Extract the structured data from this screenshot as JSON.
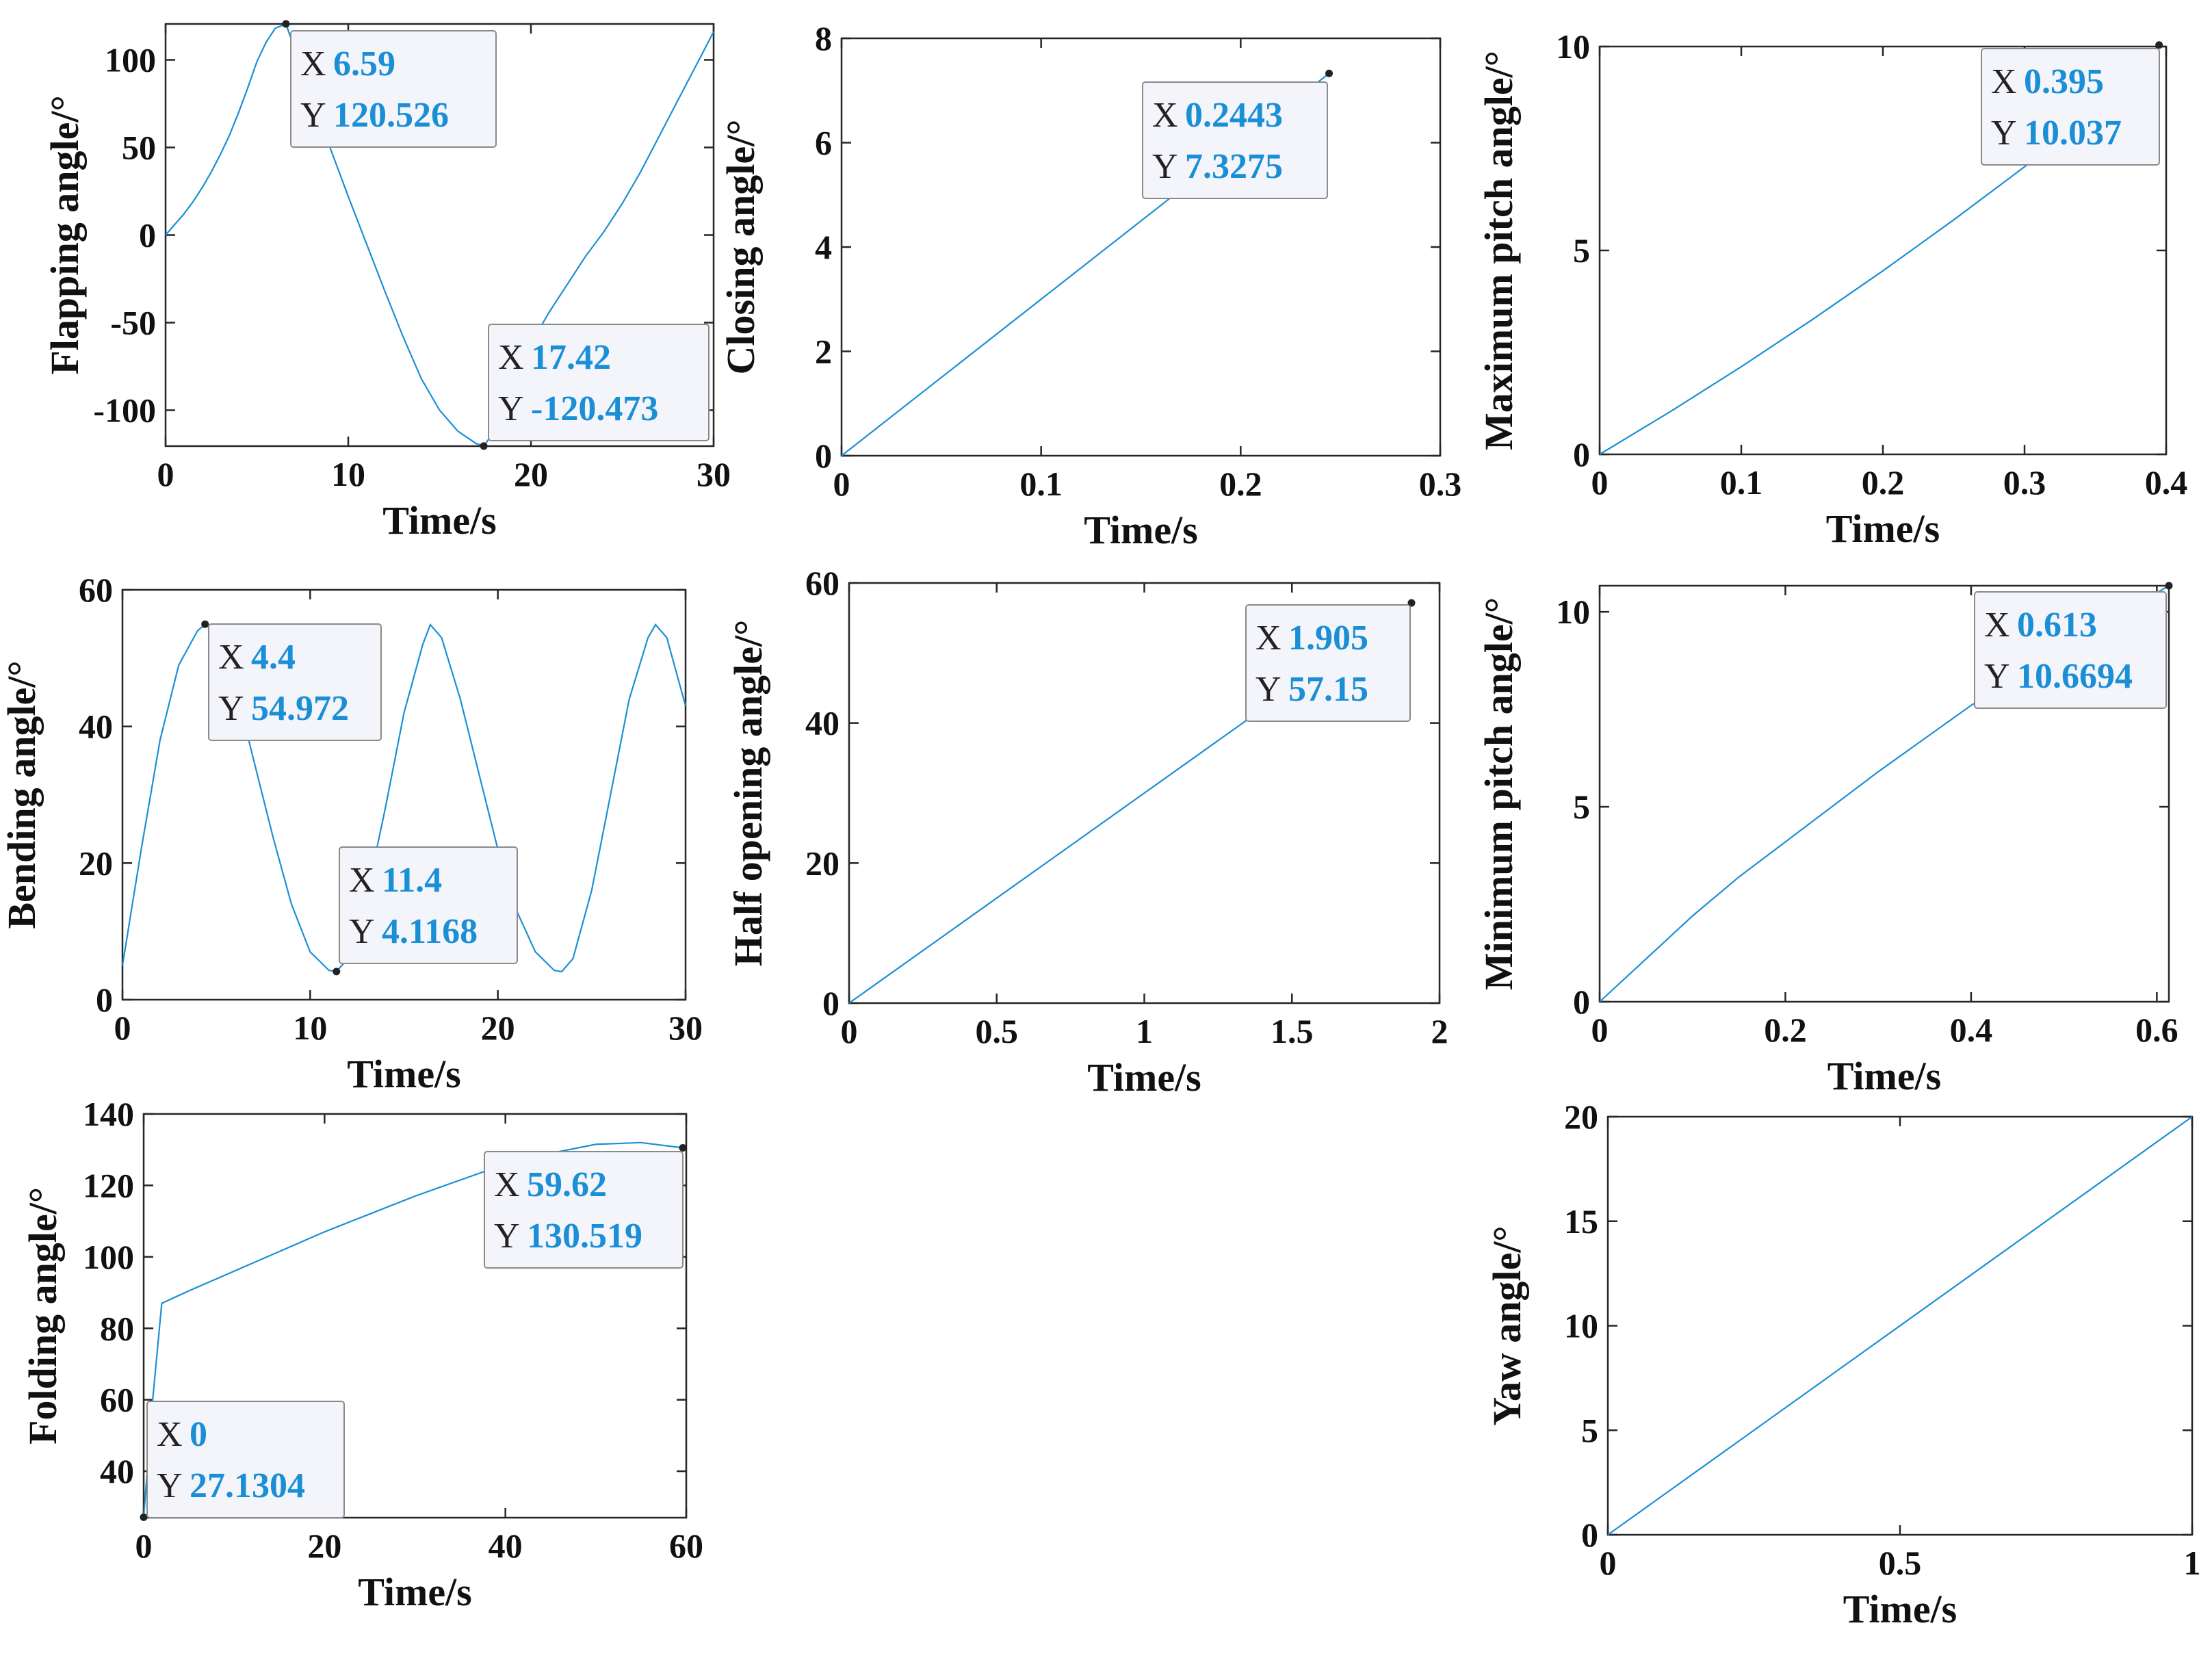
{
  "colors": {
    "line": "#1a8fd6",
    "value": "#1a8fd6",
    "axis": "#262626",
    "tip_bg": "#f4f4fb",
    "tip_border": "#8a8a8a"
  },
  "chart_data": [
    {
      "id": "flapping",
      "type": "line",
      "xlabel": "Time/s",
      "ylabel": "Flapping angle/°",
      "xlim": [
        0,
        30
      ],
      "ylim": [
        -120.5,
        120.5
      ],
      "xticks": [
        0,
        10,
        20,
        30
      ],
      "xtick_labels": [
        "0",
        "10",
        "20",
        "30"
      ],
      "yticks": [
        -100,
        -50,
        0,
        50,
        100
      ],
      "ytick_labels": [
        "-100",
        "-50",
        "0",
        "50",
        "100"
      ],
      "series": [
        {
          "name": "flapping",
          "x": [
            0,
            0.5,
            1,
            1.5,
            2,
            2.5,
            3,
            3.5,
            4,
            4.5,
            5,
            5.5,
            6,
            6.59,
            7,
            8,
            9,
            10,
            11,
            12,
            13,
            14,
            15,
            16,
            17,
            17.42,
            18,
            19,
            20,
            21,
            22,
            23,
            24,
            25,
            26,
            27,
            28,
            29,
            30
          ],
          "y": [
            0,
            6,
            12,
            19,
            27,
            36,
            46,
            57,
            70,
            84,
            99,
            110,
            118,
            120.526,
            108,
            78,
            50,
            22,
            -5,
            -32,
            -58,
            -82,
            -100,
            -112,
            -119,
            -120.473,
            -112,
            -88,
            -62,
            -44,
            -28,
            -12,
            2,
            18,
            36,
            56,
            76,
            96,
            116
          ]
        }
      ],
      "datatips": [
        {
          "x_label": "X",
          "x_value": "6.59",
          "y_label": "Y",
          "y_value": "120.526",
          "x": 6.59,
          "y": 120.526
        },
        {
          "x_label": "X",
          "x_value": "17.42",
          "y_label": "Y",
          "y_value": "-120.473",
          "x": 17.42,
          "y": -120.473
        }
      ]
    },
    {
      "id": "closing",
      "type": "line",
      "xlabel": "Time/s",
      "ylabel": "Closing angle/°",
      "xlim": [
        0,
        0.3
      ],
      "ylim": [
        0,
        8
      ],
      "xticks": [
        0,
        0.1,
        0.2,
        0.3
      ],
      "xtick_labels": [
        "0",
        "0.1",
        "0.2",
        "0.3"
      ],
      "yticks": [
        0,
        2,
        4,
        6,
        8
      ],
      "ytick_labels": [
        "0",
        "2",
        "4",
        "6",
        "8"
      ],
      "series": [
        {
          "name": "closing",
          "x": [
            0,
            0.2443
          ],
          "y": [
            0,
            7.3275
          ]
        }
      ],
      "datatips": [
        {
          "x_label": "X",
          "x_value": "0.2443",
          "y_label": "Y",
          "y_value": "7.3275",
          "x": 0.2443,
          "y": 7.3275
        }
      ]
    },
    {
      "id": "max-pitch",
      "type": "line",
      "xlabel": "Time/s",
      "ylabel": "Maximum pitch angle/°",
      "xlim": [
        0,
        0.4
      ],
      "ylim": [
        0,
        10
      ],
      "xticks": [
        0,
        0.1,
        0.2,
        0.3,
        0.4
      ],
      "xtick_labels": [
        "0",
        "0.1",
        "0.2",
        "0.3",
        "0.4"
      ],
      "yticks": [
        0,
        5,
        10
      ],
      "ytick_labels": [
        "0",
        "5",
        "10"
      ],
      "series": [
        {
          "name": "max-pitch",
          "x": [
            0,
            0.05,
            0.1,
            0.15,
            0.2,
            0.25,
            0.3,
            0.35,
            0.395
          ],
          "y": [
            0,
            1.05,
            2.15,
            3.3,
            4.5,
            5.75,
            7.05,
            8.5,
            10.037
          ]
        }
      ],
      "datatips": [
        {
          "x_label": "X",
          "x_value": "0.395",
          "y_label": "Y",
          "y_value": "10.037",
          "x": 0.395,
          "y": 10.037
        }
      ]
    },
    {
      "id": "bending",
      "type": "line",
      "xlabel": "Time/s",
      "ylabel": "Bending angle/°",
      "xlim": [
        0,
        30
      ],
      "ylim": [
        0,
        60
      ],
      "xticks": [
        0,
        10,
        20,
        30
      ],
      "xtick_labels": [
        "0",
        "10",
        "20",
        "30"
      ],
      "yticks": [
        0,
        20,
        40,
        60
      ],
      "ytick_labels": [
        "0",
        "20",
        "40",
        "60"
      ],
      "series": [
        {
          "name": "bending",
          "x": [
            0,
            1,
            2,
            3,
            4,
            4.4,
            5,
            6,
            7,
            8,
            9,
            10,
            11,
            11.4,
            12,
            13,
            14,
            15,
            16,
            16.4,
            17,
            18,
            19,
            20,
            21,
            22,
            23,
            23.4,
            24,
            25,
            26,
            27,
            28,
            28.4,
            29,
            30
          ],
          "y": [
            5,
            22,
            38,
            49,
            54,
            54.972,
            54,
            46,
            35,
            24,
            14,
            7,
            4.3,
            4.1168,
            6,
            15,
            28,
            42,
            52,
            54.9,
            53,
            44,
            33,
            22,
            13,
            7,
            4.3,
            4.1,
            6,
            16,
            30,
            44,
            53,
            54.9,
            53,
            43
          ]
        }
      ],
      "datatips": [
        {
          "x_label": "X",
          "x_value": "4.4",
          "y_label": "Y",
          "y_value": "54.972",
          "x": 4.4,
          "y": 54.972
        },
        {
          "x_label": "X",
          "x_value": "11.4",
          "y_label": "Y",
          "y_value": "4.1168",
          "x": 11.4,
          "y": 4.1168
        }
      ]
    },
    {
      "id": "half-opening",
      "type": "line",
      "xlabel": "Time/s",
      "ylabel": "Half opening angle/°",
      "xlim": [
        0,
        2
      ],
      "ylim": [
        0,
        60
      ],
      "xticks": [
        0,
        0.5,
        1,
        1.5,
        2
      ],
      "xtick_labels": [
        "0",
        "0.5",
        "1",
        "1.5",
        "2"
      ],
      "yticks": [
        0,
        20,
        40,
        60
      ],
      "ytick_labels": [
        "0",
        "20",
        "40",
        "60"
      ],
      "series": [
        {
          "name": "half-opening",
          "x": [
            0,
            1.905
          ],
          "y": [
            0,
            57.15
          ]
        }
      ],
      "datatips": [
        {
          "x_label": "X",
          "x_value": "1.905",
          "y_label": "Y",
          "y_value": "57.15",
          "x": 1.905,
          "y": 57.15
        }
      ]
    },
    {
      "id": "min-pitch",
      "type": "line",
      "xlabel": "Time/s",
      "ylabel": "Minimum pitch angle/°",
      "xlim": [
        0,
        0.613
      ],
      "ylim": [
        0,
        10.6694
      ],
      "xticks": [
        0,
        0.2,
        0.4,
        0.6
      ],
      "xtick_labels": [
        "0",
        "0.2",
        "0.4",
        "0.6"
      ],
      "yticks": [
        0,
        5,
        10
      ],
      "ytick_labels": [
        "0",
        "5",
        "10"
      ],
      "series": [
        {
          "name": "min-pitch",
          "x": [
            0,
            0.05,
            0.1,
            0.15,
            0.2,
            0.3,
            0.4,
            0.5,
            0.613
          ],
          "y": [
            0,
            1.1,
            2.2,
            3.2,
            4.1,
            5.9,
            7.6,
            9.1,
            10.6694
          ]
        }
      ],
      "datatips": [
        {
          "x_label": "X",
          "x_value": "0.613",
          "y_label": "Y",
          "y_value": "10.6694",
          "x": 0.613,
          "y": 10.6694
        }
      ]
    },
    {
      "id": "folding",
      "type": "line",
      "xlabel": "Time/s",
      "ylabel": "Folding angle/°",
      "xlim": [
        0,
        60
      ],
      "ylim": [
        27,
        140
      ],
      "xticks": [
        0,
        20,
        40,
        60
      ],
      "xtick_labels": [
        "0",
        "20",
        "40",
        "60"
      ],
      "yticks": [
        40,
        60,
        80,
        100,
        120,
        140
      ],
      "ytick_labels": [
        "40",
        "60",
        "80",
        "100",
        "120",
        "140"
      ],
      "series": [
        {
          "name": "folding",
          "x": [
            0,
            1,
            2,
            5,
            10,
            15,
            20,
            25,
            30,
            35,
            40,
            45,
            50,
            55,
            59.62
          ],
          "y": [
            27.1304,
            60,
            87,
            90.5,
            96,
            101.5,
            107,
            112,
            117,
            121.5,
            126,
            129,
            131.5,
            132,
            130.519
          ]
        }
      ],
      "datatips": [
        {
          "x_label": "X",
          "x_value": "59.62",
          "y_label": "Y",
          "y_value": "130.519",
          "x": 59.62,
          "y": 130.519
        },
        {
          "x_label": "X",
          "x_value": "0",
          "y_label": "Y",
          "y_value": "27.1304",
          "x": 0,
          "y": 27.1304
        }
      ]
    },
    {
      "id": "yaw",
      "type": "line",
      "xlabel": "Time/s",
      "ylabel": "Yaw angle/°",
      "xlim": [
        0,
        1
      ],
      "ylim": [
        0,
        20
      ],
      "xticks": [
        0,
        0.5,
        1
      ],
      "xtick_labels": [
        "0",
        "0.5",
        "1"
      ],
      "yticks": [
        0,
        5,
        10,
        15,
        20
      ],
      "ytick_labels": [
        "0",
        "5",
        "10",
        "15",
        "20"
      ],
      "series": [
        {
          "name": "yaw",
          "x": [
            0,
            1
          ],
          "y": [
            0,
            20
          ]
        }
      ],
      "datatips": []
    }
  ]
}
